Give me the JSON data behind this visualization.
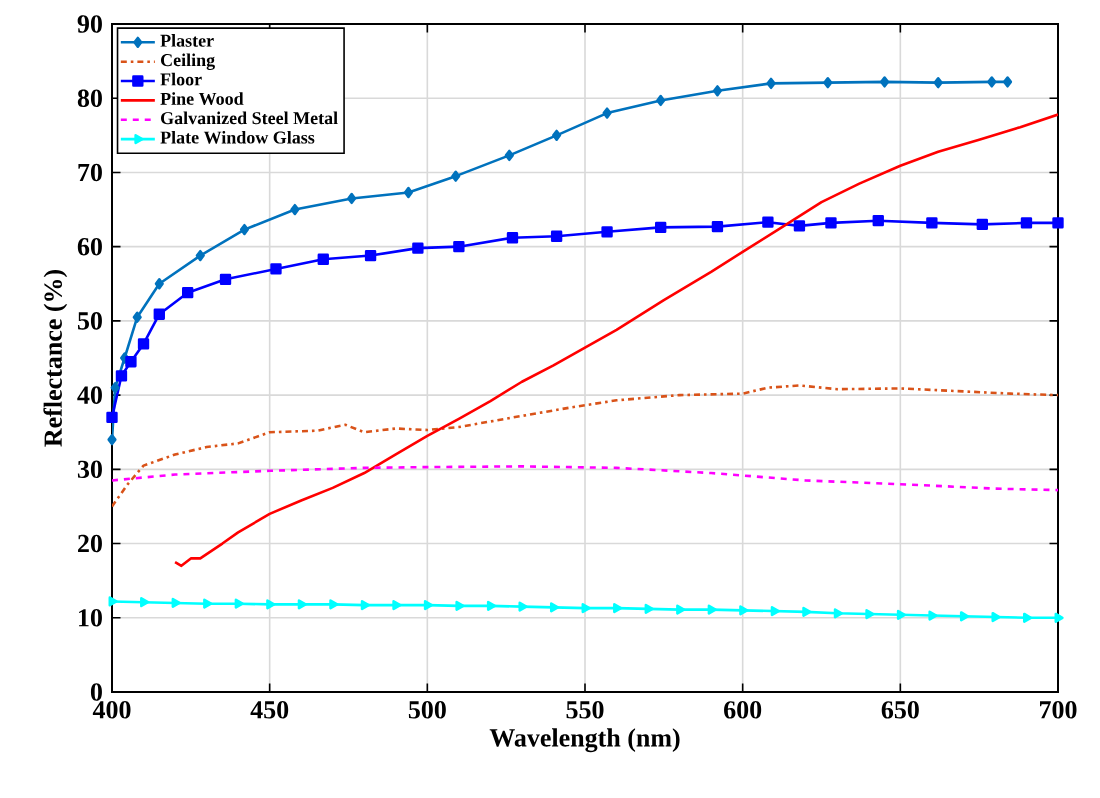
{
  "chart_data": {
    "type": "line",
    "xlabel": "Wavelength (nm)",
    "ylabel": "Reflectance (%)",
    "xlim": [
      400,
      700
    ],
    "ylim": [
      0,
      90
    ],
    "xticks": [
      400,
      450,
      500,
      550,
      600,
      650,
      700
    ],
    "yticks": [
      0,
      10,
      20,
      30,
      40,
      50,
      60,
      70,
      80,
      90
    ],
    "grid": true,
    "legend": "top left",
    "series": [
      {
        "name": "Plaster",
        "color": "#0072bd",
        "marker": "diamond",
        "line_style": "solid",
        "x": [
          400,
          401,
          404,
          408,
          415,
          428,
          442,
          458,
          476,
          494,
          509,
          526,
          541,
          557,
          574,
          592,
          609,
          627,
          645,
          662,
          679,
          684
        ],
        "values": [
          34,
          41,
          45,
          50.5,
          55,
          58.8,
          62.3,
          65,
          66.5,
          67.3,
          69.5,
          72.3,
          75,
          78,
          79.7,
          81,
          82,
          82.1,
          82.2,
          82.1,
          82.2,
          82.2
        ]
      },
      {
        "name": "Ceiling",
        "color": "#d95319",
        "marker": "none",
        "line_style": "dashdot",
        "x": [
          400,
          405,
          410,
          420,
          430,
          440,
          450,
          465,
          474,
          480,
          490,
          500,
          510,
          530,
          545,
          560,
          580,
          600,
          608,
          618,
          630,
          650,
          670,
          685,
          700
        ],
        "values": [
          25,
          28,
          30.5,
          32,
          33,
          33.5,
          35,
          35.2,
          36,
          35,
          35.5,
          35.3,
          35.7,
          37.2,
          38.3,
          39.3,
          40,
          40.2,
          41,
          41.3,
          40.8,
          40.9,
          40.5,
          40.2,
          40
        ]
      },
      {
        "name": "Floor",
        "color": "#0000ff",
        "marker": "square",
        "line_style": "solid",
        "x": [
          400,
          403,
          406,
          410,
          415,
          424,
          436,
          452,
          467,
          482,
          497,
          510,
          527,
          541,
          557,
          574,
          592,
          608,
          618,
          628,
          643,
          660,
          676,
          690,
          700
        ],
        "values": [
          37,
          42.6,
          44.5,
          46.9,
          50.9,
          53.8,
          55.6,
          57,
          58.3,
          58.8,
          59.8,
          60,
          61.2,
          61.4,
          62,
          62.6,
          62.7,
          63.3,
          62.8,
          63.2,
          63.5,
          63.2,
          63,
          63.2,
          63.2
        ]
      },
      {
        "name": "Pine Wood",
        "color": "#ff0000",
        "marker": "none",
        "line_style": "solid",
        "x": [
          420,
          422,
          425,
          428,
          435,
          440,
          450,
          460,
          470,
          480,
          490,
          500,
          510,
          520,
          530,
          540,
          550,
          560,
          575,
          590,
          600,
          612,
          625,
          637,
          650,
          662,
          675,
          688,
          700
        ],
        "values": [
          17.5,
          17,
          18,
          18,
          20,
          21.5,
          24,
          25.8,
          27.5,
          29.5,
          32,
          34.5,
          36.8,
          39.2,
          41.8,
          44,
          46.4,
          48.8,
          52.8,
          56.6,
          59.3,
          62.5,
          66,
          68.5,
          70.9,
          72.8,
          74.4,
          76.1,
          77.8
        ]
      },
      {
        "name": "Galvanized Steel Metal",
        "color": "#ff00ff",
        "marker": "none",
        "line_style": "dashed",
        "x": [
          400,
          420,
          450,
          480,
          500,
          530,
          560,
          590,
          620,
          650,
          680,
          700
        ],
        "values": [
          28.5,
          29.3,
          29.8,
          30.2,
          30.3,
          30.4,
          30.2,
          29.5,
          28.5,
          28,
          27.4,
          27.2
        ]
      },
      {
        "name": "Plate Window Glass",
        "color": "#00ffff",
        "marker": "triangle",
        "line_style": "solid",
        "x": [
          400,
          410,
          420,
          430,
          440,
          450,
          460,
          470,
          480,
          490,
          500,
          510,
          520,
          530,
          540,
          550,
          560,
          570,
          580,
          590,
          600,
          610,
          620,
          630,
          640,
          650,
          660,
          670,
          680,
          690,
          700
        ],
        "values": [
          12.2,
          12.1,
          12,
          11.9,
          11.9,
          11.8,
          11.8,
          11.8,
          11.7,
          11.7,
          11.7,
          11.6,
          11.6,
          11.5,
          11.4,
          11.3,
          11.3,
          11.2,
          11.1,
          11.1,
          11,
          10.9,
          10.8,
          10.6,
          10.5,
          10.4,
          10.3,
          10.2,
          10.1,
          10,
          10
        ]
      }
    ]
  }
}
